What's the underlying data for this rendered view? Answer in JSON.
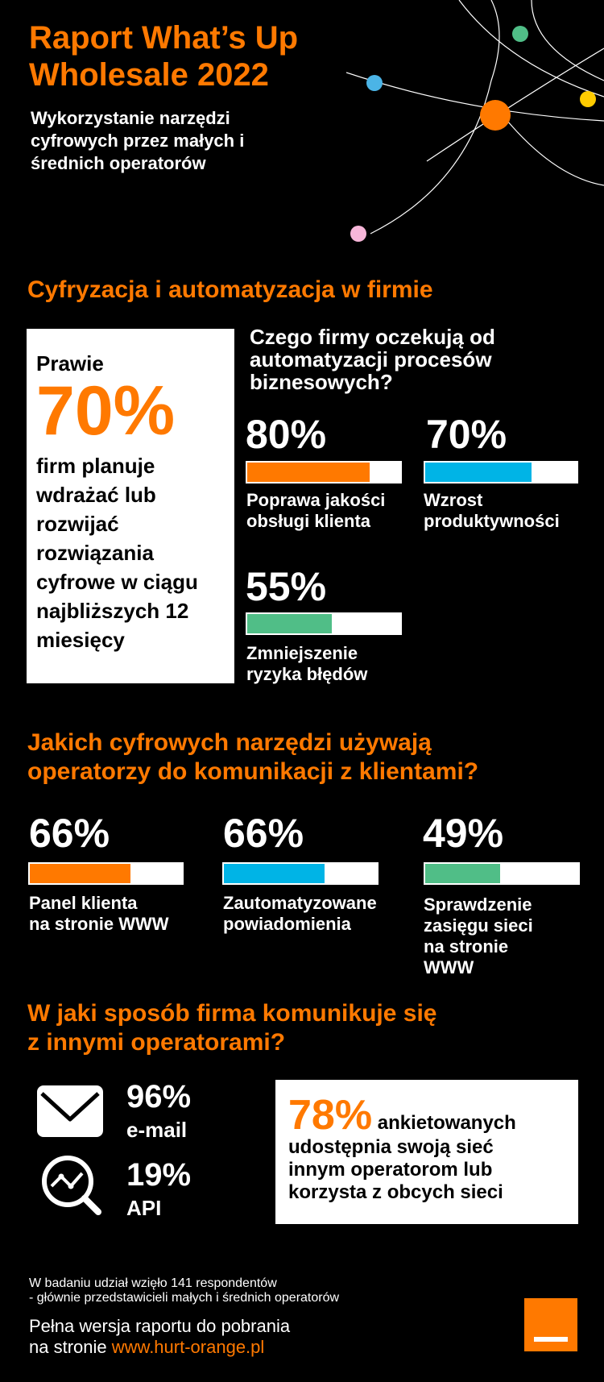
{
  "header": {
    "title": "Raport What’s Up Wholesale 2022",
    "subtitle": "Wykorzystanie narzędzi cyfrowych przez małych i średnich operatorów"
  },
  "section1": {
    "heading": "Cyfryzacja i automatyzacja w firmie",
    "box_lead": "Prawie",
    "box_pct": "70%",
    "box_text": "firm planuje wdrażać lub rozwijać rozwiązania cyfrowe w ciągu najbliższych 12 miesięcy",
    "question": "Czego firmy oczekują od automatyzacji procesów biznesowych?",
    "stats": [
      {
        "pct": "80%",
        "value": 0.8,
        "color": "#ff7900",
        "label_1": "Poprawa jakości",
        "label_2": "obsługi klienta"
      },
      {
        "pct": "70%",
        "value": 0.7,
        "color": "#00b4e6",
        "label_1": "Wzrost",
        "label_2": "produktywności"
      },
      {
        "pct": "55%",
        "value": 0.55,
        "color": "#50be87",
        "label_1": "Zmniejszenie",
        "label_2": "ryzyka błędów"
      }
    ]
  },
  "section2": {
    "heading_1": "Jakich cyfrowych narzędzi używają",
    "heading_2": "operatorzy do komunikacji z klientami?",
    "stats": [
      {
        "pct": "66%",
        "value": 0.66,
        "color": "#ff7900",
        "label_1": "Panel klienta",
        "label_2": "na stronie WWW"
      },
      {
        "pct": "66%",
        "value": 0.66,
        "color": "#00b4e6",
        "label_1": "Zautomatyzowane",
        "label_2": "powiadomienia"
      },
      {
        "pct": "49%",
        "value": 0.49,
        "color": "#50be87",
        "label_1": "Sprawdzenie",
        "label_2": "zasięgu sieci",
        "label_3": "na stronie",
        "label_4": "WWW"
      }
    ]
  },
  "section3": {
    "heading_1": "W jaki sposób firma komunikuje się",
    "heading_2": "z innymi operatorami?",
    "email_pct": "96%",
    "email_label": "e-mail",
    "api_pct": "19%",
    "api_label": "API",
    "box_pct": "78%",
    "box_text_1": "ankietowanych",
    "box_text_2": "udostępnia swoją sieć",
    "box_text_3": "innym operatorom lub",
    "box_text_4": "korzysta z obcych sieci"
  },
  "footer": {
    "note_1": "W badaniu udział wzięło 141 respondentów",
    "note_2": "- głównie przedstawicieli małych i średnich operatorów",
    "download_1": "Pełna wersja raportu do pobrania",
    "download_2_prefix": "na stronie",
    "download_link": "www.hurt-orange.pl"
  },
  "colors": {
    "orange": "#ff7900",
    "blue": "#00b4e6",
    "green": "#50be87",
    "yellow": "#ffcc00",
    "pink": "#f7b6d9",
    "lightblue": "#4bb4e6"
  }
}
